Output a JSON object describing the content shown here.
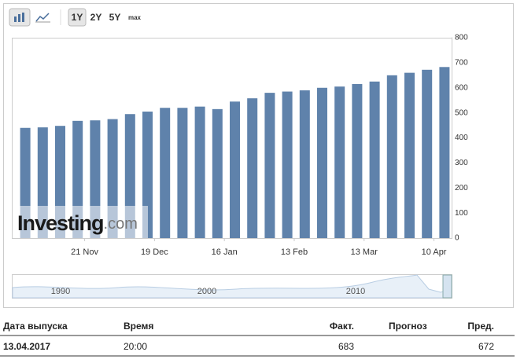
{
  "toolbar": {
    "ranges": [
      "1Y",
      "2Y",
      "5Y",
      "max"
    ]
  },
  "chart_data": {
    "type": "bar",
    "color": "#5f82ab",
    "categories": [
      null,
      null,
      null,
      "21 Nov",
      null,
      null,
      null,
      "19 Dec",
      null,
      null,
      null,
      "16 Jan",
      null,
      null,
      null,
      "13 Feb",
      null,
      null,
      null,
      "13 Mar",
      null,
      null,
      null,
      "10 Apr",
      null
    ],
    "values": [
      440,
      442,
      448,
      468,
      470,
      475,
      495,
      505,
      520,
      520,
      525,
      515,
      545,
      558,
      580,
      585,
      590,
      600,
      605,
      615,
      625,
      650,
      660,
      672,
      683
    ],
    "ylim": [
      0,
      800
    ],
    "yticks": [
      0,
      100,
      200,
      300,
      400,
      500,
      600,
      700,
      800
    ],
    "grid": false
  },
  "watermark": {
    "brand": "Investing",
    "suffix": ".com"
  },
  "navigator": {
    "labels": [
      "1990",
      "2000",
      "2010"
    ]
  },
  "table": {
    "headers": [
      "Дата выпуска",
      "Время",
      "Факт.",
      "Прогноз",
      "Пред."
    ],
    "row": {
      "date": "13.04.2017",
      "time": "20:00",
      "actual": 683,
      "previous": 672
    }
  }
}
